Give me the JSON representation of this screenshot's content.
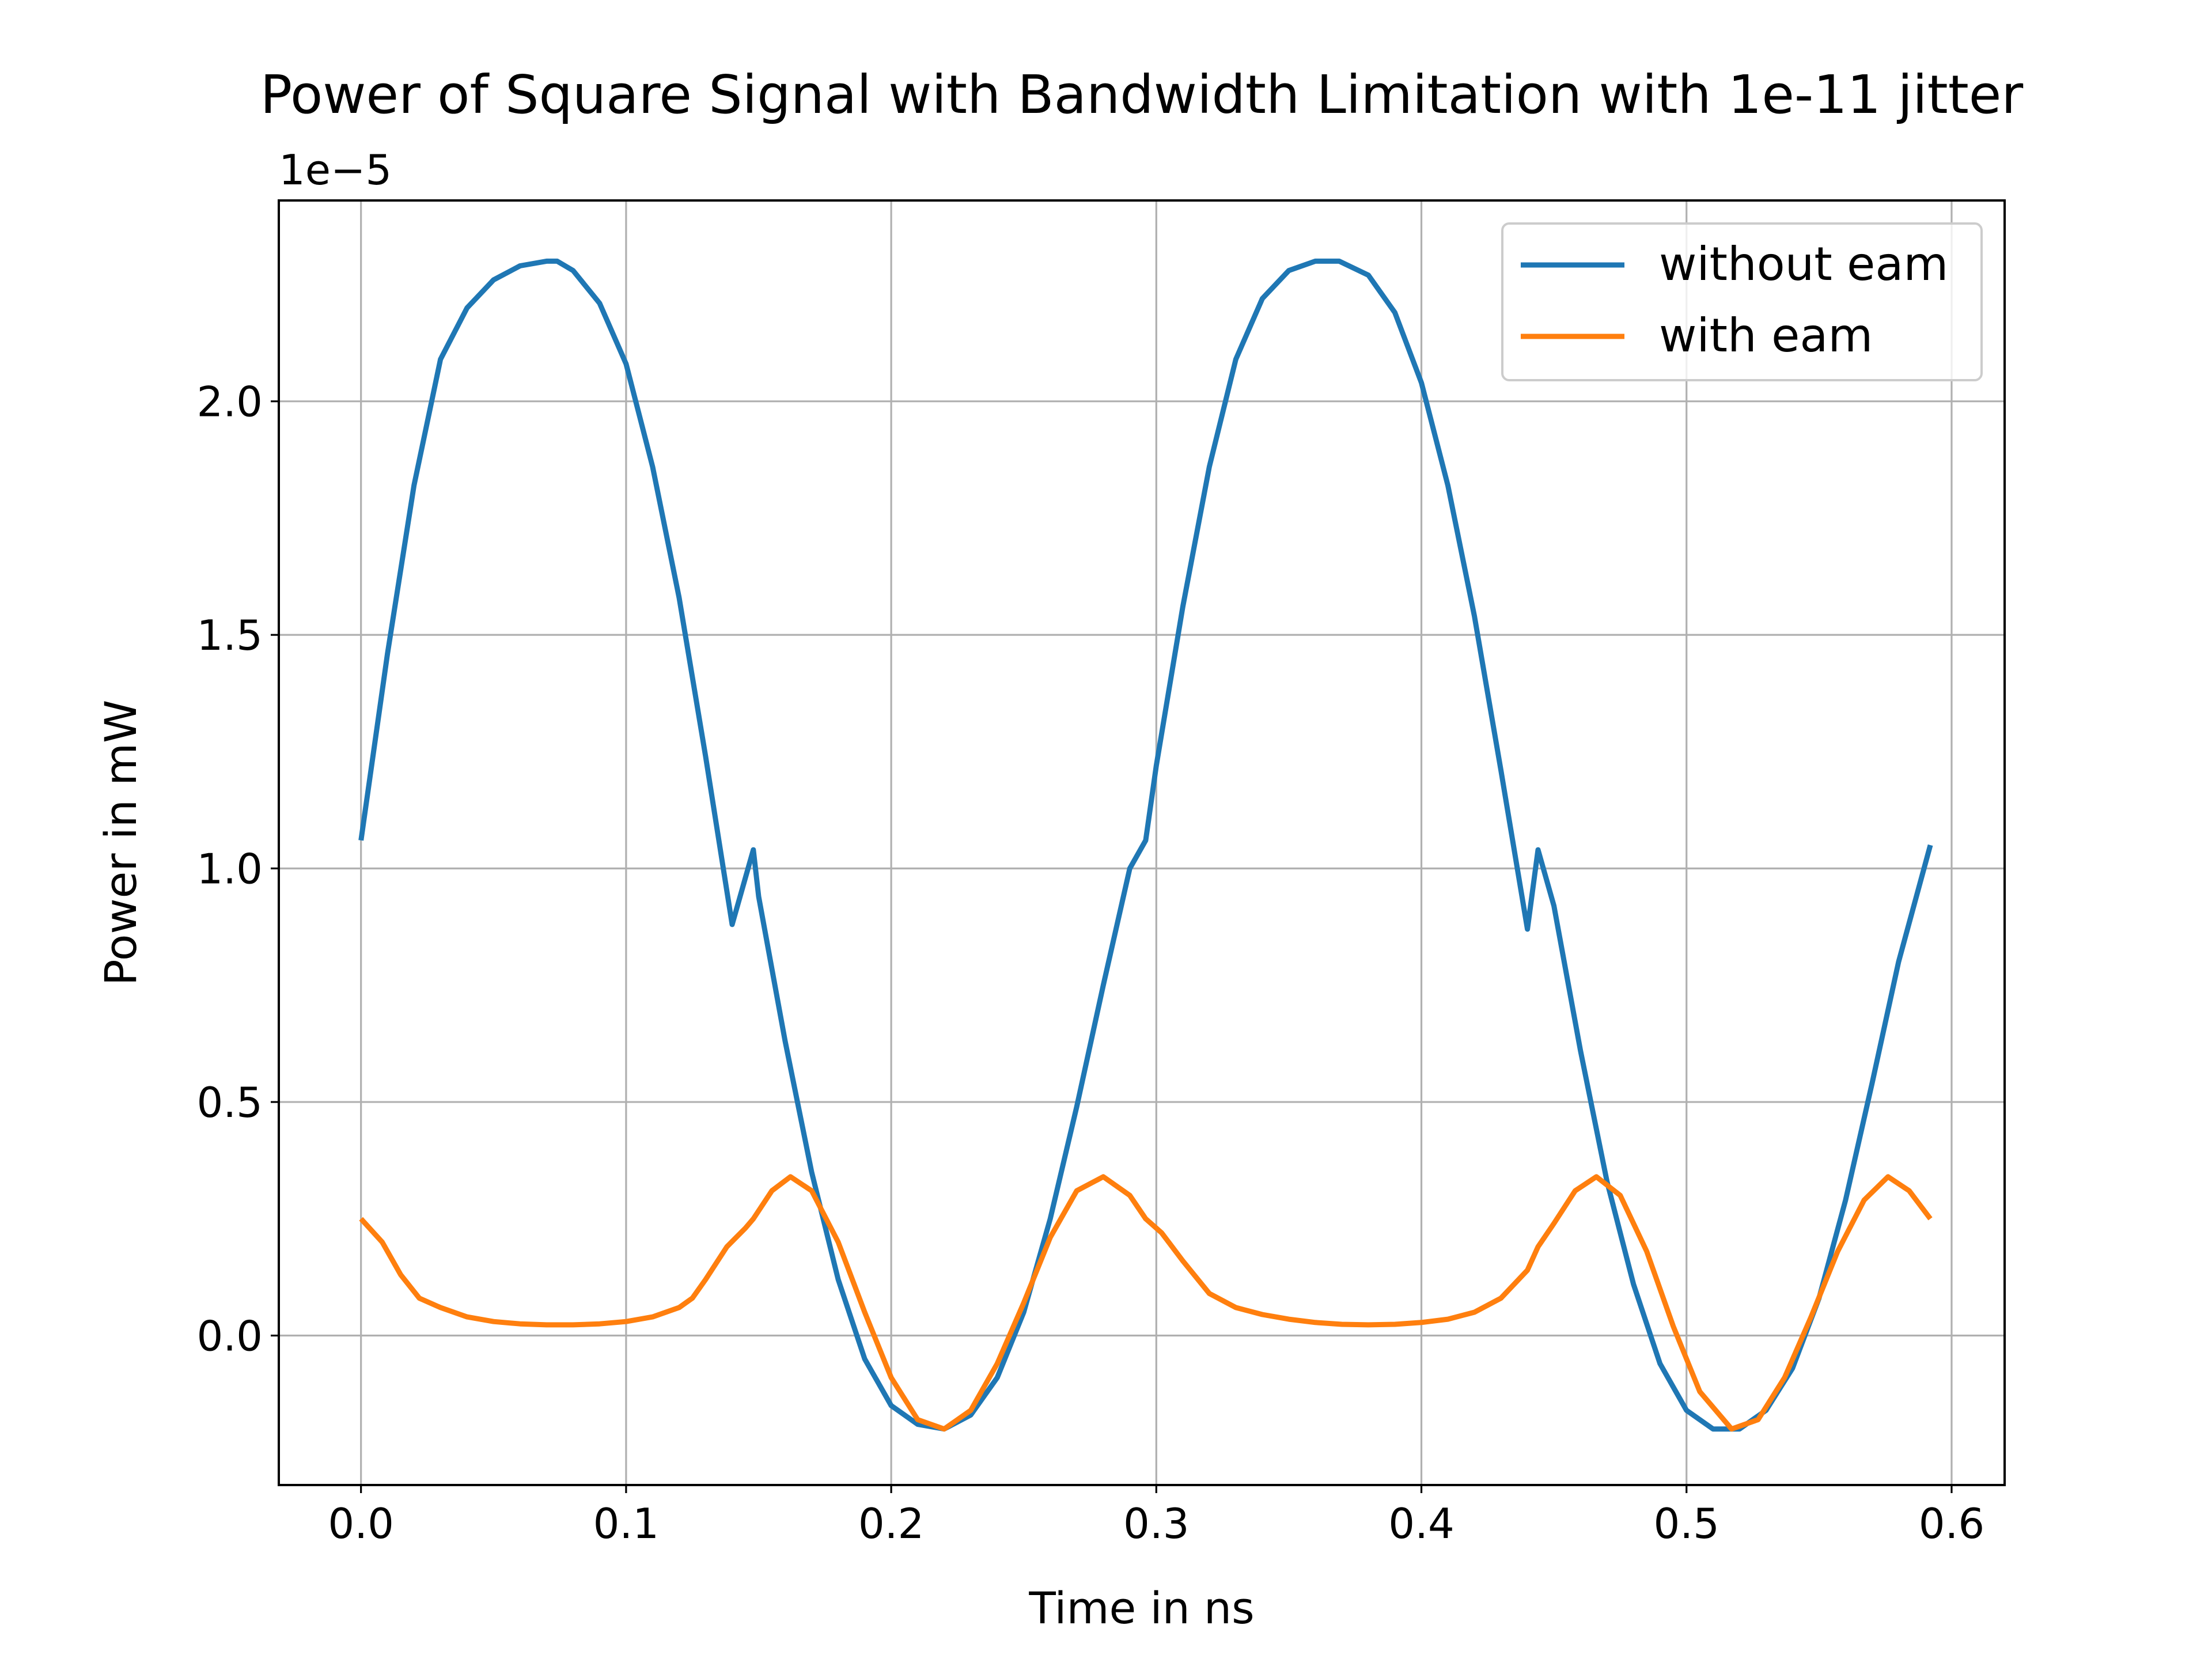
{
  "chart_data": {
    "type": "line",
    "title": "Power of Square Signal with Bandwidth Limitation with 1e-11 jitter",
    "xlabel": "Time in ns",
    "ylabel": "Power in mW",
    "y_offset_label": "1e−5",
    "xlim": [
      -0.031,
      0.62
    ],
    "ylim": [
      -0.32,
      2.43
    ],
    "xticks": [
      0.0,
      0.1,
      0.2,
      0.3,
      0.4,
      0.5,
      0.6
    ],
    "xtick_labels": [
      "0.0",
      "0.1",
      "0.2",
      "0.3",
      "0.4",
      "0.5",
      "0.6"
    ],
    "yticks": [
      0.0,
      0.5,
      1.0,
      1.5,
      2.0
    ],
    "ytick_labels": [
      "0.0",
      "0.5",
      "1.0",
      "1.5",
      "2.0"
    ],
    "grid": true,
    "legend_position": "top-right",
    "series": [
      {
        "name": "without eam",
        "color": "#1f77b4",
        "x": [
          0.0,
          0.01,
          0.02,
          0.03,
          0.04,
          0.05,
          0.06,
          0.07,
          0.074,
          0.08,
          0.09,
          0.1,
          0.11,
          0.12,
          0.13,
          0.14,
          0.148,
          0.15,
          0.16,
          0.17,
          0.18,
          0.19,
          0.2,
          0.21,
          0.22,
          0.23,
          0.24,
          0.25,
          0.26,
          0.27,
          0.28,
          0.29,
          0.296,
          0.3,
          0.31,
          0.32,
          0.33,
          0.34,
          0.35,
          0.36,
          0.369,
          0.38,
          0.39,
          0.4,
          0.41,
          0.42,
          0.43,
          0.44,
          0.444,
          0.45,
          0.46,
          0.47,
          0.48,
          0.49,
          0.5,
          0.51,
          0.52,
          0.53,
          0.54,
          0.55,
          0.56,
          0.57,
          0.58,
          0.592
        ],
        "y": [
          1.06,
          1.46,
          1.82,
          2.09,
          2.2,
          2.26,
          2.29,
          2.3,
          2.3,
          2.28,
          2.21,
          2.08,
          1.86,
          1.58,
          1.24,
          0.88,
          1.04,
          0.94,
          0.63,
          0.35,
          0.12,
          -0.05,
          -0.15,
          -0.19,
          -0.2,
          -0.17,
          -0.09,
          0.05,
          0.25,
          0.49,
          0.75,
          1.0,
          1.06,
          1.22,
          1.56,
          1.86,
          2.09,
          2.22,
          2.28,
          2.3,
          2.3,
          2.27,
          2.19,
          2.04,
          1.82,
          1.54,
          1.21,
          0.87,
          1.04,
          0.92,
          0.61,
          0.33,
          0.11,
          -0.06,
          -0.16,
          -0.2,
          -0.2,
          -0.16,
          -0.07,
          0.08,
          0.29,
          0.54,
          0.8,
          1.05
        ]
      },
      {
        "name": "with eam",
        "color": "#ff7f0e",
        "x": [
          0.0,
          0.008,
          0.015,
          0.022,
          0.03,
          0.04,
          0.05,
          0.06,
          0.07,
          0.08,
          0.09,
          0.1,
          0.11,
          0.12,
          0.125,
          0.13,
          0.138,
          0.145,
          0.148,
          0.155,
          0.162,
          0.17,
          0.18,
          0.19,
          0.2,
          0.21,
          0.22,
          0.23,
          0.24,
          0.25,
          0.26,
          0.27,
          0.28,
          0.29,
          0.296,
          0.302,
          0.31,
          0.32,
          0.33,
          0.34,
          0.35,
          0.36,
          0.37,
          0.38,
          0.39,
          0.4,
          0.41,
          0.42,
          0.43,
          0.44,
          0.444,
          0.45,
          0.458,
          0.466,
          0.475,
          0.485,
          0.495,
          0.505,
          0.517,
          0.527,
          0.537,
          0.547,
          0.557,
          0.567,
          0.576,
          0.584,
          0.592
        ],
        "y": [
          0.25,
          0.2,
          0.13,
          0.08,
          0.06,
          0.04,
          0.03,
          0.025,
          0.023,
          0.023,
          0.025,
          0.03,
          0.04,
          0.06,
          0.08,
          0.12,
          0.19,
          0.23,
          0.25,
          0.31,
          0.34,
          0.31,
          0.2,
          0.05,
          -0.09,
          -0.18,
          -0.2,
          -0.16,
          -0.06,
          0.07,
          0.21,
          0.31,
          0.34,
          0.3,
          0.25,
          0.22,
          0.16,
          0.09,
          0.06,
          0.045,
          0.035,
          0.028,
          0.024,
          0.023,
          0.024,
          0.028,
          0.035,
          0.05,
          0.08,
          0.14,
          0.19,
          0.24,
          0.31,
          0.34,
          0.3,
          0.18,
          0.02,
          -0.12,
          -0.2,
          -0.18,
          -0.09,
          0.04,
          0.18,
          0.29,
          0.34,
          0.31,
          0.25
        ]
      }
    ]
  }
}
